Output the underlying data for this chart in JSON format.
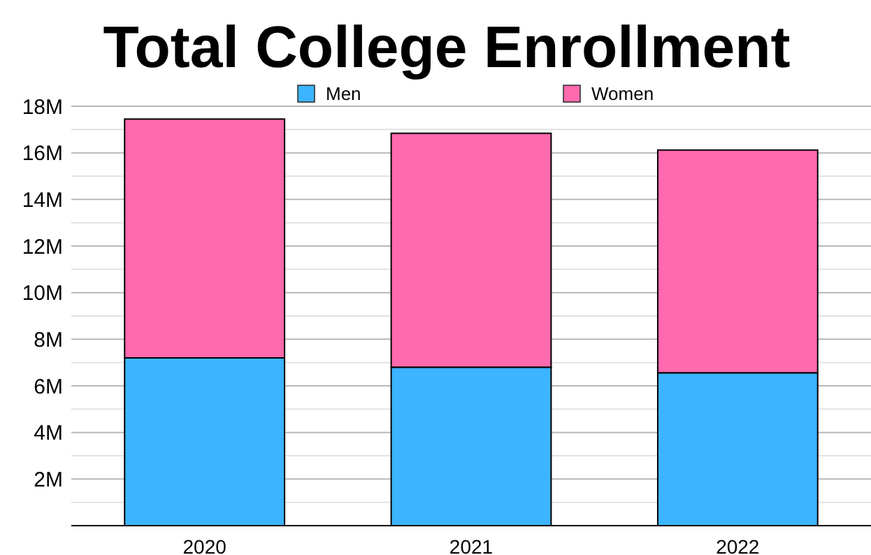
{
  "chart_data": {
    "type": "bar",
    "title": "Total College Enrollment",
    "categories": [
      "2020",
      "2021",
      "2022"
    ],
    "stacked": true,
    "series": [
      {
        "name": "Men",
        "color": "#3db4ff",
        "values": [
          7.2,
          6.8,
          6.56
        ]
      },
      {
        "name": "Women",
        "color": "#ff69ad",
        "values": [
          10.25,
          10.04,
          9.56
        ]
      }
    ],
    "ylim": [
      0,
      18
    ],
    "yticks": [
      {
        "value": 1,
        "label": null
      },
      {
        "value": 2,
        "label": "2M"
      },
      {
        "value": 3,
        "label": null
      },
      {
        "value": 4,
        "label": "4M"
      },
      {
        "value": 5,
        "label": null
      },
      {
        "value": 6,
        "label": "6M"
      },
      {
        "value": 7,
        "label": null
      },
      {
        "value": 8,
        "label": "8M"
      },
      {
        "value": 9,
        "label": null
      },
      {
        "value": 10,
        "label": "10M"
      },
      {
        "value": 11,
        "label": null
      },
      {
        "value": 12,
        "label": "12M"
      },
      {
        "value": 13,
        "label": null
      },
      {
        "value": 14,
        "label": "14M"
      },
      {
        "value": 15,
        "label": null
      },
      {
        "value": 16,
        "label": "16M"
      },
      {
        "value": 17,
        "label": null
      },
      {
        "value": 18,
        "label": "18M"
      }
    ],
    "grid": true,
    "legend": "top"
  }
}
